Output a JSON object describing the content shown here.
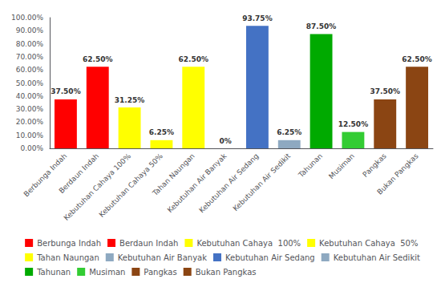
{
  "chart_data": {
    "type": "bar",
    "categories": [
      "Berbunga Indah",
      "Berdaun Indah",
      "Kebutuhan Cahaya 100%",
      "Kebutuhan Cahaya 50%",
      "Tahan Naungan",
      "Kebutuhan Air Banyak",
      "Kebutuhan Air Sedang",
      "Kebutuhan Air Sedikit",
      "Tahunan",
      "Musiman",
      "Pangkas",
      "Bukan Pangkas"
    ],
    "values": [
      37.5,
      62.5,
      31.25,
      6.25,
      62.5,
      0.0,
      93.75,
      6.25,
      87.5,
      12.5,
      37.5,
      62.5
    ],
    "value_labels": [
      "37.50%",
      "62.50%",
      "31.25%",
      "6.25%",
      "62.50%",
      "0%",
      "93.75%",
      "6.25%",
      "87.50%",
      "12.50%",
      "37.50%",
      "62.50%"
    ],
    "colors": [
      "#FF0000",
      "#FF0000",
      "#FFFF00",
      "#FFFF00",
      "#FFFF00",
      "#8EA9C1",
      "#4472C4",
      "#8EA9C1",
      "#00AA00",
      "#33CC33",
      "#8B4513",
      "#8B4513"
    ],
    "data_labels": true,
    "ylim": [
      0,
      100
    ],
    "yticks": [
      {
        "value": 0,
        "label": "0.00%"
      },
      {
        "value": 10,
        "label": "10.00%"
      },
      {
        "value": 20,
        "label": "20.00%"
      },
      {
        "value": 30,
        "label": "30.00%"
      },
      {
        "value": 40,
        "label": "40.00%"
      },
      {
        "value": 50,
        "label": "50.00%"
      },
      {
        "value": 60,
        "label": "60.00%"
      },
      {
        "value": 70,
        "label": "70.00%"
      },
      {
        "value": 80,
        "label": "80.00%"
      },
      {
        "value": 90,
        "label": "90.00%"
      },
      {
        "value": 100,
        "label": "100.00%"
      }
    ],
    "grid": false,
    "legend": "bottom",
    "legend_entries": [
      {
        "label": "Berbunga Indah",
        "color": "#FF0000"
      },
      {
        "label": "Berdaun Indah",
        "color": "#FF0000"
      },
      {
        "label": "Kebutuhan Cahaya  100%",
        "color": "#FFFF00"
      },
      {
        "label": "Kebutuhan Cahaya  50%",
        "color": "#FFFF00"
      },
      {
        "label": "Tahan Naungan",
        "color": "#FFFF00"
      },
      {
        "label": "Kebutuhan Air Banyak",
        "color": "#8EA9C1"
      },
      {
        "label": "Kebutuhan Air Sedang",
        "color": "#4472C4"
      },
      {
        "label": "Kebutuhan Air Sedikit",
        "color": "#8EA9C1"
      },
      {
        "label": "Tahunan",
        "color": "#00AA00"
      },
      {
        "label": "Musiman",
        "color": "#33CC33"
      },
      {
        "label": "Pangkas",
        "color": "#8B4513"
      },
      {
        "label": "Bukan Pangkas",
        "color": "#8B4513"
      }
    ]
  }
}
